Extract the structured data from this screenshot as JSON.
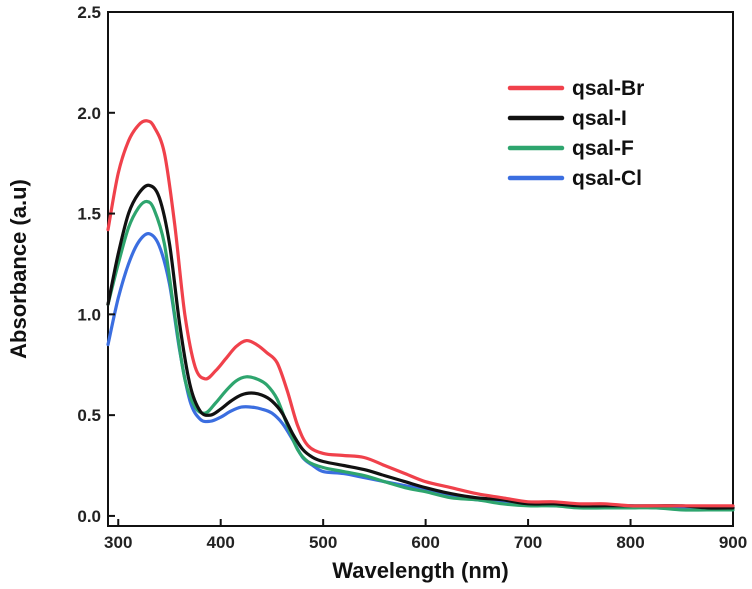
{
  "chart_data": {
    "type": "line",
    "xlabel": "Wavelength (nm)",
    "ylabel": "Absorbance (a.u)",
    "xlim": [
      290,
      900
    ],
    "ylim": [
      -0.05,
      2.5
    ],
    "xticks": [
      "300",
      "400",
      "500",
      "600",
      "700",
      "800",
      "900"
    ],
    "xtick_values": [
      300,
      400,
      500,
      600,
      700,
      800,
      900
    ],
    "yticks": [
      "0.0",
      "0.5",
      "1.0",
      "1.5",
      "2.0",
      "2.5"
    ],
    "ytick_values": [
      0.0,
      0.5,
      1.0,
      1.5,
      2.0,
      2.5
    ],
    "grid": false,
    "legend_position": "top-right",
    "series": [
      {
        "name": "qsal-Br",
        "color": "#f0414b",
        "x": [
          290,
          300,
          310,
          320,
          328,
          335,
          345,
          355,
          365,
          375,
          385,
          395,
          405,
          415,
          425,
          435,
          445,
          455,
          465,
          475,
          485,
          500,
          520,
          540,
          560,
          580,
          600,
          625,
          650,
          675,
          700,
          725,
          750,
          775,
          800,
          825,
          850,
          875,
          900
        ],
        "y": [
          1.42,
          1.7,
          1.86,
          1.94,
          1.96,
          1.93,
          1.8,
          1.45,
          1.0,
          0.74,
          0.68,
          0.72,
          0.78,
          0.84,
          0.87,
          0.85,
          0.81,
          0.76,
          0.62,
          0.45,
          0.35,
          0.31,
          0.3,
          0.29,
          0.25,
          0.21,
          0.17,
          0.14,
          0.11,
          0.09,
          0.07,
          0.07,
          0.06,
          0.06,
          0.05,
          0.05,
          0.05,
          0.05,
          0.05
        ]
      },
      {
        "name": "qsal-I",
        "color": "#111111",
        "x": [
          290,
          300,
          310,
          320,
          330,
          340,
          350,
          360,
          370,
          380,
          390,
          400,
          410,
          420,
          430,
          440,
          450,
          460,
          470,
          480,
          490,
          500,
          520,
          540,
          560,
          580,
          600,
          625,
          650,
          675,
          700,
          725,
          750,
          775,
          800,
          825,
          850,
          875,
          900
        ],
        "y": [
          1.05,
          1.3,
          1.5,
          1.6,
          1.64,
          1.58,
          1.35,
          0.95,
          0.65,
          0.52,
          0.5,
          0.53,
          0.57,
          0.6,
          0.61,
          0.6,
          0.57,
          0.51,
          0.41,
          0.33,
          0.29,
          0.27,
          0.25,
          0.23,
          0.2,
          0.17,
          0.14,
          0.11,
          0.09,
          0.08,
          0.06,
          0.06,
          0.05,
          0.05,
          0.05,
          0.05,
          0.05,
          0.04,
          0.04
        ]
      },
      {
        "name": "qsal-F",
        "color": "#2ea56e",
        "x": [
          290,
          300,
          310,
          320,
          328,
          335,
          345,
          355,
          365,
          375,
          385,
          395,
          405,
          415,
          425,
          435,
          445,
          455,
          465,
          475,
          485,
          500,
          520,
          540,
          560,
          580,
          600,
          625,
          650,
          675,
          700,
          725,
          750,
          775,
          800,
          825,
          850,
          875,
          900
        ],
        "y": [
          1.05,
          1.25,
          1.43,
          1.53,
          1.56,
          1.52,
          1.35,
          1.0,
          0.68,
          0.54,
          0.51,
          0.56,
          0.62,
          0.67,
          0.69,
          0.68,
          0.65,
          0.58,
          0.45,
          0.33,
          0.27,
          0.24,
          0.22,
          0.2,
          0.17,
          0.14,
          0.12,
          0.09,
          0.08,
          0.06,
          0.05,
          0.05,
          0.04,
          0.04,
          0.04,
          0.04,
          0.03,
          0.03,
          0.03
        ]
      },
      {
        "name": "qsal-Cl",
        "color": "#3b6ee0",
        "x": [
          290,
          300,
          310,
          320,
          330,
          340,
          350,
          360,
          370,
          380,
          390,
          400,
          410,
          420,
          430,
          440,
          450,
          460,
          470,
          480,
          490,
          500,
          520,
          540,
          560,
          580,
          600,
          625,
          650,
          675,
          700,
          725,
          750,
          775,
          800,
          825,
          850,
          875,
          900
        ],
        "y": [
          0.85,
          1.08,
          1.25,
          1.36,
          1.4,
          1.34,
          1.15,
          0.82,
          0.57,
          0.48,
          0.47,
          0.49,
          0.52,
          0.54,
          0.54,
          0.53,
          0.51,
          0.46,
          0.38,
          0.29,
          0.25,
          0.22,
          0.21,
          0.19,
          0.17,
          0.15,
          0.13,
          0.1,
          0.08,
          0.07,
          0.06,
          0.05,
          0.05,
          0.05,
          0.05,
          0.04,
          0.04,
          0.04,
          0.04
        ]
      }
    ]
  }
}
